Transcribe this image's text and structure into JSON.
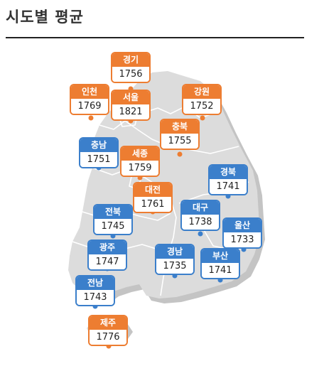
{
  "title": "시도별 평균",
  "colors": {
    "higher": "#ed7d31",
    "lower": "#3b7fcb",
    "land": "#d9d9d9",
    "border": "#ffffff"
  },
  "regions": [
    {
      "key": "gyeonggi",
      "name": "경기",
      "value": 1756,
      "group": "orange"
    },
    {
      "key": "incheon",
      "name": "인천",
      "value": 1769,
      "group": "orange"
    },
    {
      "key": "seoul",
      "name": "서울",
      "value": 1821,
      "group": "orange"
    },
    {
      "key": "gangwon",
      "name": "강원",
      "value": 1752,
      "group": "orange"
    },
    {
      "key": "chungbuk",
      "name": "충북",
      "value": 1755,
      "group": "orange"
    },
    {
      "key": "chungnam",
      "name": "충남",
      "value": 1751,
      "group": "blue"
    },
    {
      "key": "sejong",
      "name": "세종",
      "value": 1759,
      "group": "orange"
    },
    {
      "key": "gyeongbuk",
      "name": "경북",
      "value": 1741,
      "group": "blue"
    },
    {
      "key": "daejeon",
      "name": "대전",
      "value": 1761,
      "group": "orange"
    },
    {
      "key": "jeonbuk",
      "name": "전북",
      "value": 1745,
      "group": "blue"
    },
    {
      "key": "daegu",
      "name": "대구",
      "value": 1738,
      "group": "blue"
    },
    {
      "key": "ulsan",
      "name": "울산",
      "value": 1733,
      "group": "blue"
    },
    {
      "key": "gwangju",
      "name": "광주",
      "value": 1747,
      "group": "blue"
    },
    {
      "key": "gyeongnam",
      "name": "경남",
      "value": 1735,
      "group": "blue"
    },
    {
      "key": "busan",
      "name": "부산",
      "value": 1741,
      "group": "blue"
    },
    {
      "key": "jeonnam",
      "name": "전남",
      "value": 1743,
      "group": "blue"
    },
    {
      "key": "jeju",
      "name": "제주",
      "value": 1776,
      "group": "orange"
    }
  ]
}
